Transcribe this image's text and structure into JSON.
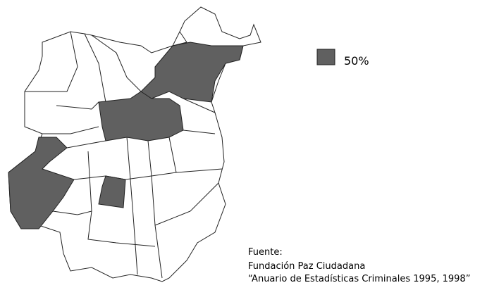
{
  "legend": {
    "label": "50%"
  },
  "source": {
    "heading": "Fuente:",
    "organization": "Fundación Paz Ciudadana",
    "publication": "“Anuario de Estadísticas Criminales 1995, 1998”"
  }
}
